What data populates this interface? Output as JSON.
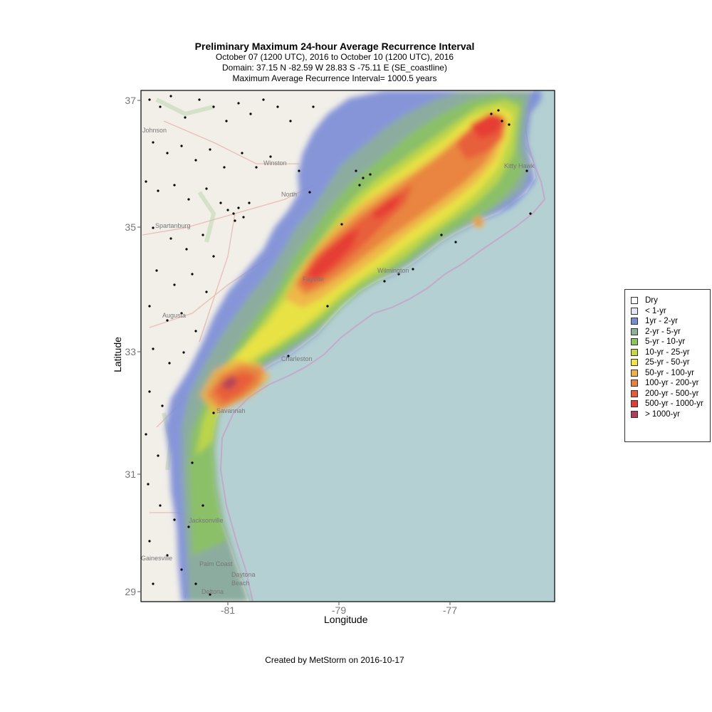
{
  "header": {
    "title": "Preliminary Maximum 24-hour Average Recurrence Interval",
    "subtitle1": "October 07 (1200 UTC), 2016 to October 10 (1200 UTC), 2016",
    "subtitle2": "Domain: 37.15 N -82.59 W 28.83 S -75.11 E (SE_coastline)",
    "subtitle3": "Maximum Average Recurrence Interval= 1000.5 years"
  },
  "axes": {
    "xlabel": "Longitude",
    "ylabel": "Latitude",
    "xticks": [
      "-81",
      "-79",
      "-77"
    ],
    "yticks": [
      "37",
      "35",
      "33",
      "31",
      "29"
    ]
  },
  "map_labels": [
    "Johnson",
    "Spartanburg",
    "Augusta",
    "Savannah",
    "Charleston",
    "Wilmington",
    "Jacksonville",
    "Gainesville",
    "Palm Coast",
    "Daytona",
    "Beach",
    "Deltona",
    "North",
    "Kitty Hawk",
    "Winston",
    "Fayette"
  ],
  "legend": {
    "items": [
      {
        "label": "Dry",
        "color": "#ffffff"
      },
      {
        "label": "< 1-yr",
        "color": "#e4e6f5"
      },
      {
        "label": "1yr - 2-yr",
        "color": "#7a8cd6"
      },
      {
        "label": "2-yr - 5-yr",
        "color": "#8eb096"
      },
      {
        "label": "5-yr - 10-yr",
        "color": "#8cc45f"
      },
      {
        "label": "10-yr - 25-yr",
        "color": "#c4d844"
      },
      {
        "label": "25-yr - 50-yr",
        "color": "#f0e444"
      },
      {
        "label": "50-yr - 100-yr",
        "color": "#eeb04a"
      },
      {
        "label": "100-yr - 200-yr",
        "color": "#e8803e"
      },
      {
        "label": "200-yr - 500-yr",
        "color": "#e85a3a"
      },
      {
        "label": "500-yr - 1000-yr",
        "color": "#e63c36"
      },
      {
        "label": "> 1000-yr",
        "color": "#b0405a"
      }
    ]
  },
  "footer": "Created by MetStorm on 2016-10-17"
}
